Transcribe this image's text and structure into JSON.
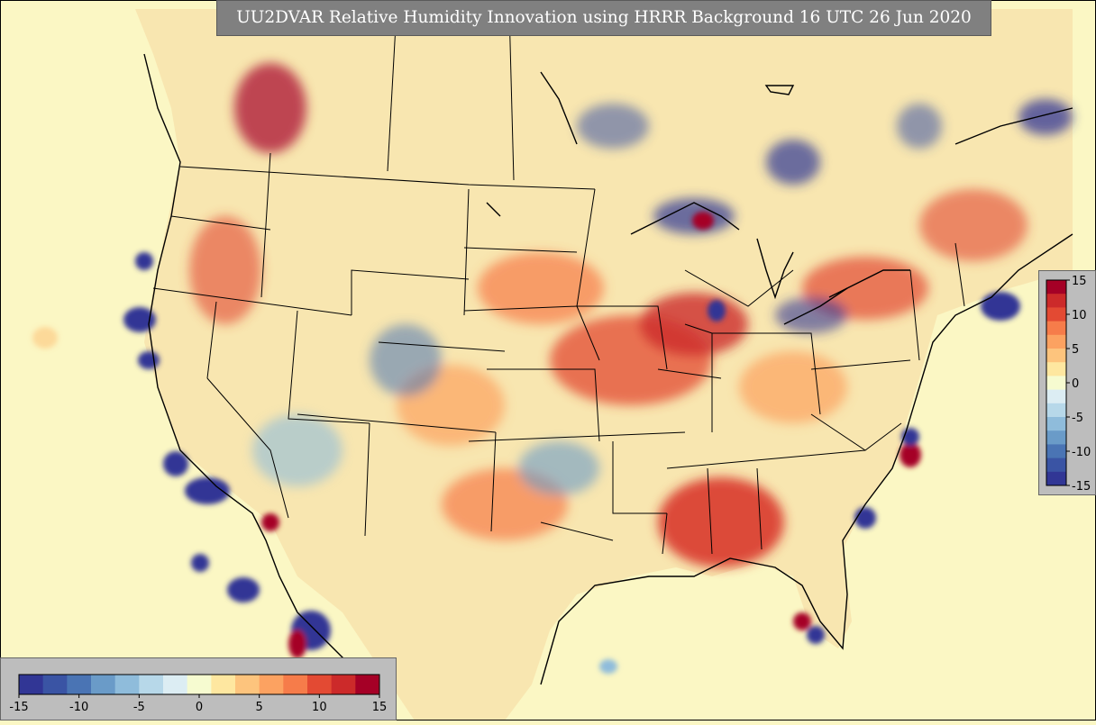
{
  "title": "UU2DVAR Relative Humidity Innovation using HRRR Background 16 UTC 26 Jun 2020",
  "colorbar": {
    "min": -15,
    "max": 15,
    "horizontal_ticks": [
      "-15",
      "-10",
      "-5",
      "0",
      "5",
      "10",
      "15"
    ],
    "vertical_ticks": [
      "15",
      "10",
      "5",
      "0",
      "-5",
      "-10",
      "-15"
    ],
    "colors": [
      "#313695",
      "#3a54a4",
      "#4a74b4",
      "#6a9bc8",
      "#8fbcdb",
      "#b7d8e9",
      "#dcedf3",
      "#f6fbd0",
      "#fee7a0",
      "#fdc47d",
      "#fca261",
      "#f67c4a",
      "#e34a33",
      "#cc2a2a",
      "#a50026"
    ]
  },
  "map": {
    "background": "#fbf7c4",
    "ocean_bright": "#fbf7c4",
    "positive_color": "#d73027",
    "negative_color": "#4575b4"
  }
}
